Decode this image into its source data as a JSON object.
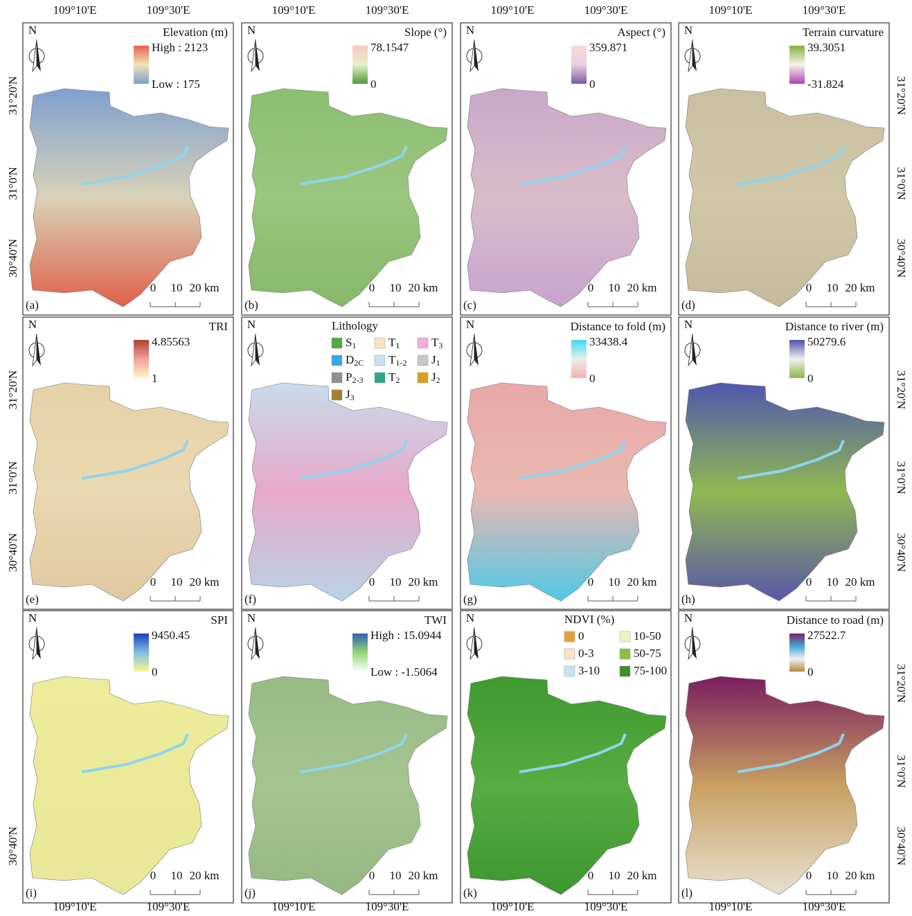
{
  "lon_top": [
    [
      "109°10'E",
      "109°30'E"
    ],
    [
      "109°10'E",
      "109°30'E"
    ],
    [
      "109°10'E",
      "109°30'E"
    ],
    [
      "109°10'E",
      "109°30'E"
    ]
  ],
  "lon_bottom": [
    [
      "109°10'E",
      "109°30'E"
    ],
    [
      "109°10'E",
      "109°30'E"
    ],
    [
      "109°10'E",
      "109°30'E"
    ],
    [
      "109°10'E",
      "109°30'E"
    ]
  ],
  "lat_left": [
    [
      "31°20'N",
      "31°0'N",
      "30°40'N"
    ],
    [
      "31°20'N",
      "31°0'N",
      "30°40'N"
    ],
    [
      "30°40'N"
    ]
  ],
  "lat_right": [
    [
      "31°20'N",
      "31°0'N",
      "30°40'N"
    ],
    [
      "31°20'N",
      "31°0'N",
      "30°40'N"
    ],
    [
      "31°20'N",
      "31°0'N",
      "30°40'N"
    ]
  ],
  "panels": [
    {
      "label": "(a)",
      "north": "N",
      "scale": [
        "0",
        "10",
        "20 km"
      ],
      "map_colors": [
        "#7f9fcf",
        "#d8d2b8",
        "#e06048"
      ],
      "legend": {
        "title": "Elevation (m)",
        "max": "High : 2123",
        "min": "Low : 175",
        "colors": [
          "#e8604c",
          "#f3e3b8",
          "#7d9fd0"
        ]
      }
    },
    {
      "label": "(b)",
      "north": "N",
      "scale": [
        "0",
        "10",
        "20 km"
      ],
      "map_colors": [
        "#8cbf72",
        "#9ac67e",
        "#86b86a"
      ],
      "legend": {
        "title": "Slope (°)",
        "max": "78.1547",
        "min": "0",
        "colors": [
          "#f8c8c8",
          "#e8f0c8",
          "#4c9a3c"
        ]
      }
    },
    {
      "label": "(c)",
      "north": "N",
      "scale": [
        "0",
        "10",
        "20 km"
      ],
      "map_colors": [
        "#c9a8c9",
        "#d9bcc8",
        "#c8a4d0"
      ],
      "legend": {
        "title": "Aspect (°)",
        "max": "359.871",
        "min": "0",
        "colors": [
          "#fbd8d0",
          "#e8d0e0",
          "#7a5aa8"
        ]
      }
    },
    {
      "label": "(d)",
      "north": "N",
      "scale": [
        "0",
        "10",
        "20 km"
      ],
      "map_colors": [
        "#c8c0a0",
        "#d0c8a8",
        "#c4bb9c"
      ],
      "legend": {
        "title": "Terrain curvature",
        "max": "39.3051",
        "min": "-31.824",
        "colors": [
          "#80b040",
          "#f4f4e8",
          "#b040b0"
        ]
      }
    },
    {
      "label": "(e)",
      "north": "N",
      "scale": [
        "0",
        "10",
        "20 km"
      ],
      "map_colors": [
        "#e6d2a8",
        "#ead8b0",
        "#e0c8a0"
      ],
      "legend": {
        "title": "TRI",
        "max": "4.85563",
        "min": "1",
        "colors": [
          "#b04030",
          "#f0a0a0",
          "#fafac0"
        ]
      }
    },
    {
      "label": "(f)",
      "north": "N",
      "scale": [
        "0",
        "10",
        "20 km"
      ],
      "map_colors": [
        "#c8dcec",
        "#e8a8c8",
        "#b8d4e8"
      ],
      "legend": {
        "title": "Lithology",
        "columns": 3,
        "items": [
          {
            "base": "S",
            "sub": "1",
            "color": "#4cae3c"
          },
          {
            "base": "T",
            "sub": "1",
            "color": "#fbe5c0"
          },
          {
            "base": "T",
            "sub": "3",
            "color": "#f0b0d8"
          },
          {
            "base": "D",
            "sub": "2C",
            "color": "#3aa8e0"
          },
          {
            "base": "T",
            "sub": "1-2",
            "color": "#c8e4f4"
          },
          {
            "base": "J",
            "sub": "1",
            "color": "#c8c8c8"
          },
          {
            "base": "P",
            "sub": "2-3",
            "color": "#909090"
          },
          {
            "base": "T",
            "sub": "2",
            "color": "#30a888"
          },
          {
            "base": "J",
            "sub": "2",
            "color": "#d8a020"
          },
          {
            "base": "J",
            "sub": "3",
            "color": "#a88030"
          }
        ]
      }
    },
    {
      "label": "(g)",
      "north": "N",
      "scale": [
        "0",
        "10",
        "20 km"
      ],
      "map_colors": [
        "#e8a8a8",
        "#eab8b0",
        "#50c8e8"
      ],
      "legend": {
        "title": "Distance to fold (m)",
        "max": "33438.4",
        "min": "0",
        "colors": [
          "#40d8f8",
          "#e8f0e8",
          "#f8b0b0"
        ]
      }
    },
    {
      "label": "(h)",
      "north": "N",
      "scale": [
        "0",
        "10",
        "20 km"
      ],
      "map_colors": [
        "#5058b0",
        "#90b850",
        "#5858a8"
      ],
      "legend": {
        "title": "Distance to river (m)",
        "max": "50279.6",
        "min": "0",
        "colors": [
          "#5050a8",
          "#f0f0f0",
          "#8cb848"
        ]
      }
    },
    {
      "label": "(i)",
      "north": "N",
      "scale": [
        "0",
        "10",
        "20 km"
      ],
      "map_colors": [
        "#ecec9c",
        "#eaea98",
        "#e8e898"
      ],
      "legend": {
        "title": "SPI",
        "max": "9450.45",
        "min": "0",
        "colors": [
          "#2040c0",
          "#80c0e0",
          "#f8f890"
        ]
      }
    },
    {
      "label": "(j)",
      "north": "N",
      "scale": [
        "0",
        "10",
        "20 km"
      ],
      "map_colors": [
        "#98bb84",
        "#a4c490",
        "#96b882"
      ],
      "legend": {
        "title": "TWI",
        "max": "High : 15.0944",
        "min": "Low : -1.5064",
        "colors": [
          "#3060b0",
          "#90d870",
          "#ffffff"
        ]
      }
    },
    {
      "label": "(k)",
      "north": "N",
      "scale": [
        "0",
        "10",
        "20 km"
      ],
      "map_colors": [
        "#3f9a30",
        "#58ac40",
        "#3c9630"
      ],
      "legend": {
        "title": "NDVI (%)",
        "columns": 2,
        "items": [
          {
            "label": "0",
            "color": "#e8a030"
          },
          {
            "label": "10-50",
            "color": "#e8f8c0"
          },
          {
            "label": "0-3",
            "color": "#fbe5c8"
          },
          {
            "label": "50-75",
            "color": "#88c040"
          },
          {
            "label": "3-10",
            "color": "#c8e4f4"
          },
          {
            "label": "75-100",
            "color": "#3c9028"
          }
        ]
      }
    },
    {
      "label": "(l)",
      "north": "N",
      "scale": [
        "0",
        "10",
        "20 km"
      ],
      "map_colors": [
        "#7a1e60",
        "#c8a060",
        "#e8e0d0"
      ],
      "legend": {
        "title": "Distance to road (m)",
        "max": "27522.7",
        "min": "0",
        "colors": [
          "#802060",
          "#40a8d8",
          "#f0f0f0",
          "#b08840"
        ]
      }
    }
  ]
}
